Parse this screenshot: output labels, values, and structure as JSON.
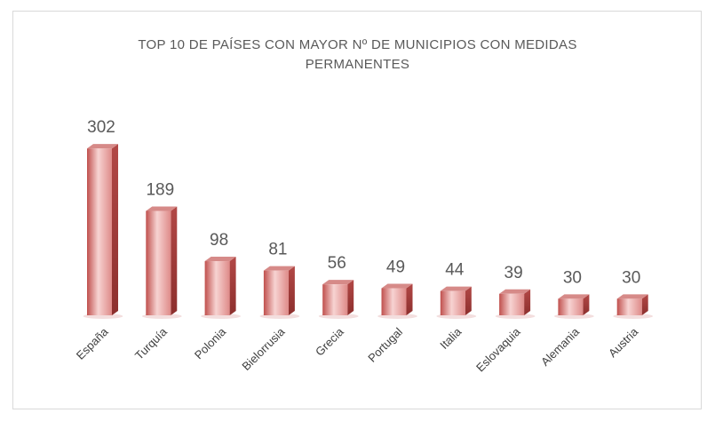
{
  "chart_data": {
    "type": "bar",
    "title": "TOP 10 DE PAÍSES CON MAYOR Nº DE MUNICIPIOS CON MEDIDAS PERMANENTES",
    "categories": [
      "España",
      "Turquía",
      "Polonia",
      "Bielorrusia",
      "Grecia",
      "Portugal",
      "Italia",
      "Eslovaquia",
      "Alemania",
      "Austria"
    ],
    "values": [
      302,
      189,
      98,
      81,
      56,
      49,
      44,
      39,
      30,
      30
    ],
    "color": "#c0504d"
  }
}
